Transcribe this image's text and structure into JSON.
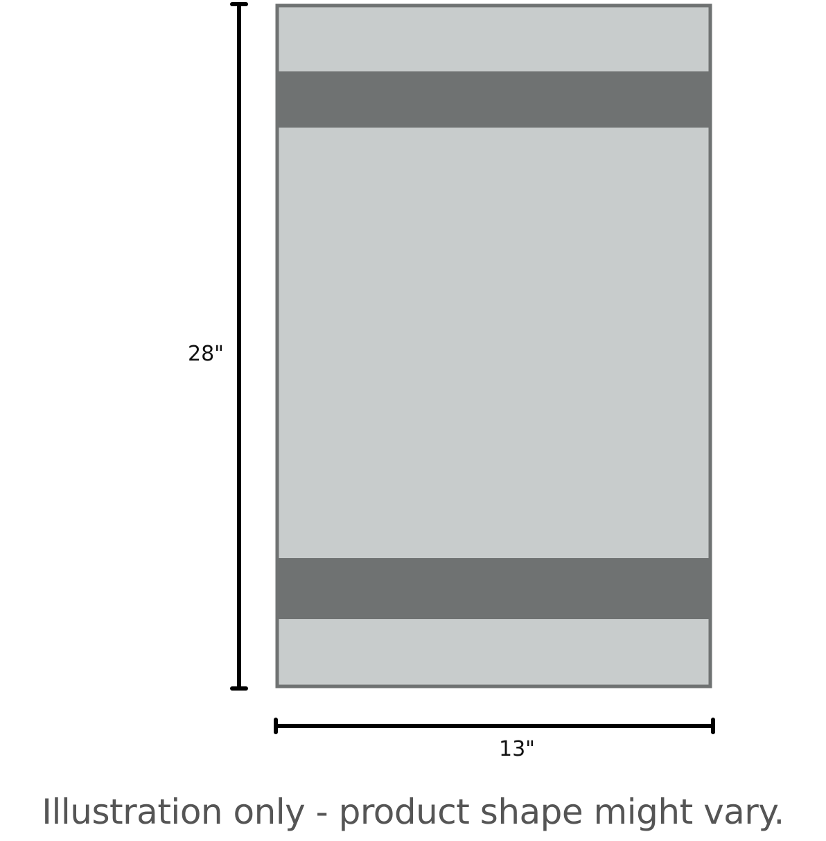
{
  "diagram": {
    "height_label": "28\"",
    "width_label": "13\"",
    "caption": "Illustration only - product shape might vary.",
    "colors": {
      "towel_body": "#c8cccc",
      "towel_border": "#6f7272",
      "stripe": "#6f7272",
      "dimension_line": "#000000",
      "caption_text": "#555555"
    }
  }
}
